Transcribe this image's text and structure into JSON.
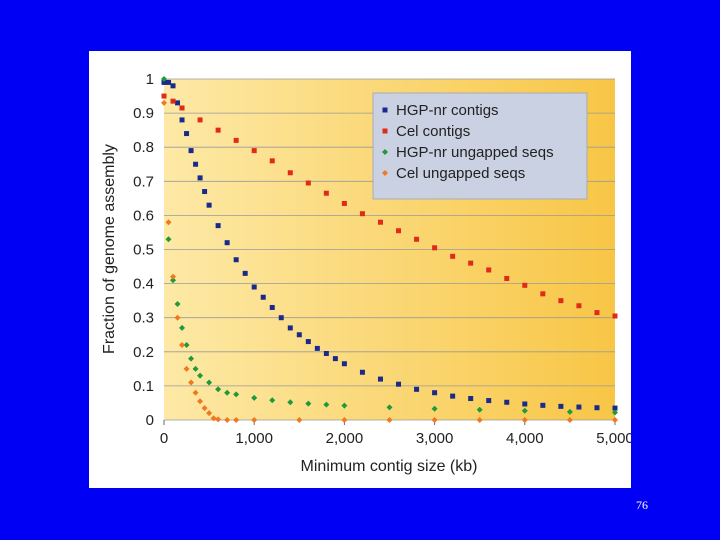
{
  "slide": {
    "number": "76",
    "background_color": "#0000f5"
  },
  "chart_data": {
    "type": "scatter",
    "xlabel": "Minimum contig size (kb)",
    "ylabel": "Fraction of genome assembly",
    "xlim": [
      0,
      5000
    ],
    "ylim": [
      0,
      1
    ],
    "x_ticks": [
      0,
      1000,
      2000,
      3000,
      4000,
      5000
    ],
    "x_tick_labels": [
      "0",
      "1,000",
      "2,000",
      "3,000",
      "4,000",
      "5,000"
    ],
    "y_ticks": [
      0,
      0.1,
      0.2,
      0.3,
      0.4,
      0.5,
      0.6,
      0.7,
      0.8,
      0.9,
      1
    ],
    "y_tick_labels": [
      "0",
      "0.1",
      "0.2",
      "0.3",
      "0.4",
      "0.5",
      "0.6",
      "0.7",
      "0.8",
      "0.9",
      "1"
    ],
    "grid": "horizontal",
    "legend_position": "top-right",
    "background_gradient": [
      "#fde9a6",
      "#f8c646"
    ],
    "series": [
      {
        "name": "HGP-nr contigs",
        "color": "#1a2a8c",
        "marker": "square",
        "points": [
          [
            0,
            0.99
          ],
          [
            50,
            0.99
          ],
          [
            100,
            0.98
          ],
          [
            150,
            0.93
          ],
          [
            200,
            0.88
          ],
          [
            250,
            0.84
          ],
          [
            300,
            0.79
          ],
          [
            350,
            0.75
          ],
          [
            400,
            0.71
          ],
          [
            450,
            0.67
          ],
          [
            500,
            0.63
          ],
          [
            600,
            0.57
          ],
          [
            700,
            0.52
          ],
          [
            800,
            0.47
          ],
          [
            900,
            0.43
          ],
          [
            1000,
            0.39
          ],
          [
            1100,
            0.36
          ],
          [
            1200,
            0.33
          ],
          [
            1300,
            0.3
          ],
          [
            1400,
            0.27
          ],
          [
            1500,
            0.25
          ],
          [
            1600,
            0.23
          ],
          [
            1700,
            0.21
          ],
          [
            1800,
            0.195
          ],
          [
            1900,
            0.18
          ],
          [
            2000,
            0.165
          ],
          [
            2200,
            0.14
          ],
          [
            2400,
            0.12
          ],
          [
            2600,
            0.105
          ],
          [
            2800,
            0.09
          ],
          [
            3000,
            0.08
          ],
          [
            3200,
            0.07
          ],
          [
            3400,
            0.063
          ],
          [
            3600,
            0.057
          ],
          [
            3800,
            0.052
          ],
          [
            4000,
            0.047
          ],
          [
            4200,
            0.043
          ],
          [
            4400,
            0.04
          ],
          [
            4600,
            0.038
          ],
          [
            4800,
            0.036
          ],
          [
            5000,
            0.035
          ]
        ]
      },
      {
        "name": "Cel contigs",
        "color": "#e02a1a",
        "marker": "square",
        "points": [
          [
            0,
            0.95
          ],
          [
            100,
            0.935
          ],
          [
            200,
            0.915
          ],
          [
            400,
            0.88
          ],
          [
            600,
            0.85
          ],
          [
            800,
            0.82
          ],
          [
            1000,
            0.79
          ],
          [
            1200,
            0.76
          ],
          [
            1400,
            0.725
          ],
          [
            1600,
            0.695
          ],
          [
            1800,
            0.665
          ],
          [
            2000,
            0.635
          ],
          [
            2200,
            0.605
          ],
          [
            2400,
            0.58
          ],
          [
            2600,
            0.555
          ],
          [
            2800,
            0.53
          ],
          [
            3000,
            0.505
          ],
          [
            3200,
            0.48
          ],
          [
            3400,
            0.46
          ],
          [
            3600,
            0.44
          ],
          [
            3800,
            0.415
          ],
          [
            4000,
            0.395
          ],
          [
            4200,
            0.37
          ],
          [
            4400,
            0.35
          ],
          [
            4600,
            0.335
          ],
          [
            4800,
            0.315
          ],
          [
            5000,
            0.305
          ]
        ]
      },
      {
        "name": "HGP-nr ungapped seqs",
        "color": "#1e9a3c",
        "marker": "diamond",
        "points": [
          [
            0,
            1.0
          ],
          [
            50,
            0.53
          ],
          [
            100,
            0.41
          ],
          [
            150,
            0.34
          ],
          [
            200,
            0.27
          ],
          [
            250,
            0.22
          ],
          [
            300,
            0.18
          ],
          [
            350,
            0.15
          ],
          [
            400,
            0.13
          ],
          [
            500,
            0.11
          ],
          [
            600,
            0.09
          ],
          [
            700,
            0.08
          ],
          [
            800,
            0.075
          ],
          [
            1000,
            0.065
          ],
          [
            1200,
            0.058
          ],
          [
            1400,
            0.052
          ],
          [
            1600,
            0.048
          ],
          [
            1800,
            0.045
          ],
          [
            2000,
            0.042
          ],
          [
            2500,
            0.037
          ],
          [
            3000,
            0.033
          ],
          [
            3500,
            0.03
          ],
          [
            4000,
            0.027
          ],
          [
            4500,
            0.024
          ],
          [
            5000,
            0.022
          ]
        ]
      },
      {
        "name": "Cel ungapped seqs",
        "color": "#f07820",
        "marker": "diamond",
        "points": [
          [
            0,
            0.93
          ],
          [
            50,
            0.58
          ],
          [
            100,
            0.42
          ],
          [
            150,
            0.3
          ],
          [
            200,
            0.22
          ],
          [
            250,
            0.15
          ],
          [
            300,
            0.11
          ],
          [
            350,
            0.08
          ],
          [
            400,
            0.055
          ],
          [
            450,
            0.035
          ],
          [
            500,
            0.02
          ],
          [
            550,
            0.005
          ],
          [
            600,
            0.002
          ],
          [
            700,
            0.0
          ],
          [
            800,
            0.0
          ],
          [
            1000,
            0.0
          ],
          [
            1500,
            0.0
          ],
          [
            2000,
            0.0
          ],
          [
            2500,
            0.0
          ],
          [
            3000,
            0.0
          ],
          [
            3500,
            0.0
          ],
          [
            4000,
            0.0
          ],
          [
            4500,
            0.0
          ],
          [
            5000,
            0.0
          ]
        ]
      }
    ]
  }
}
